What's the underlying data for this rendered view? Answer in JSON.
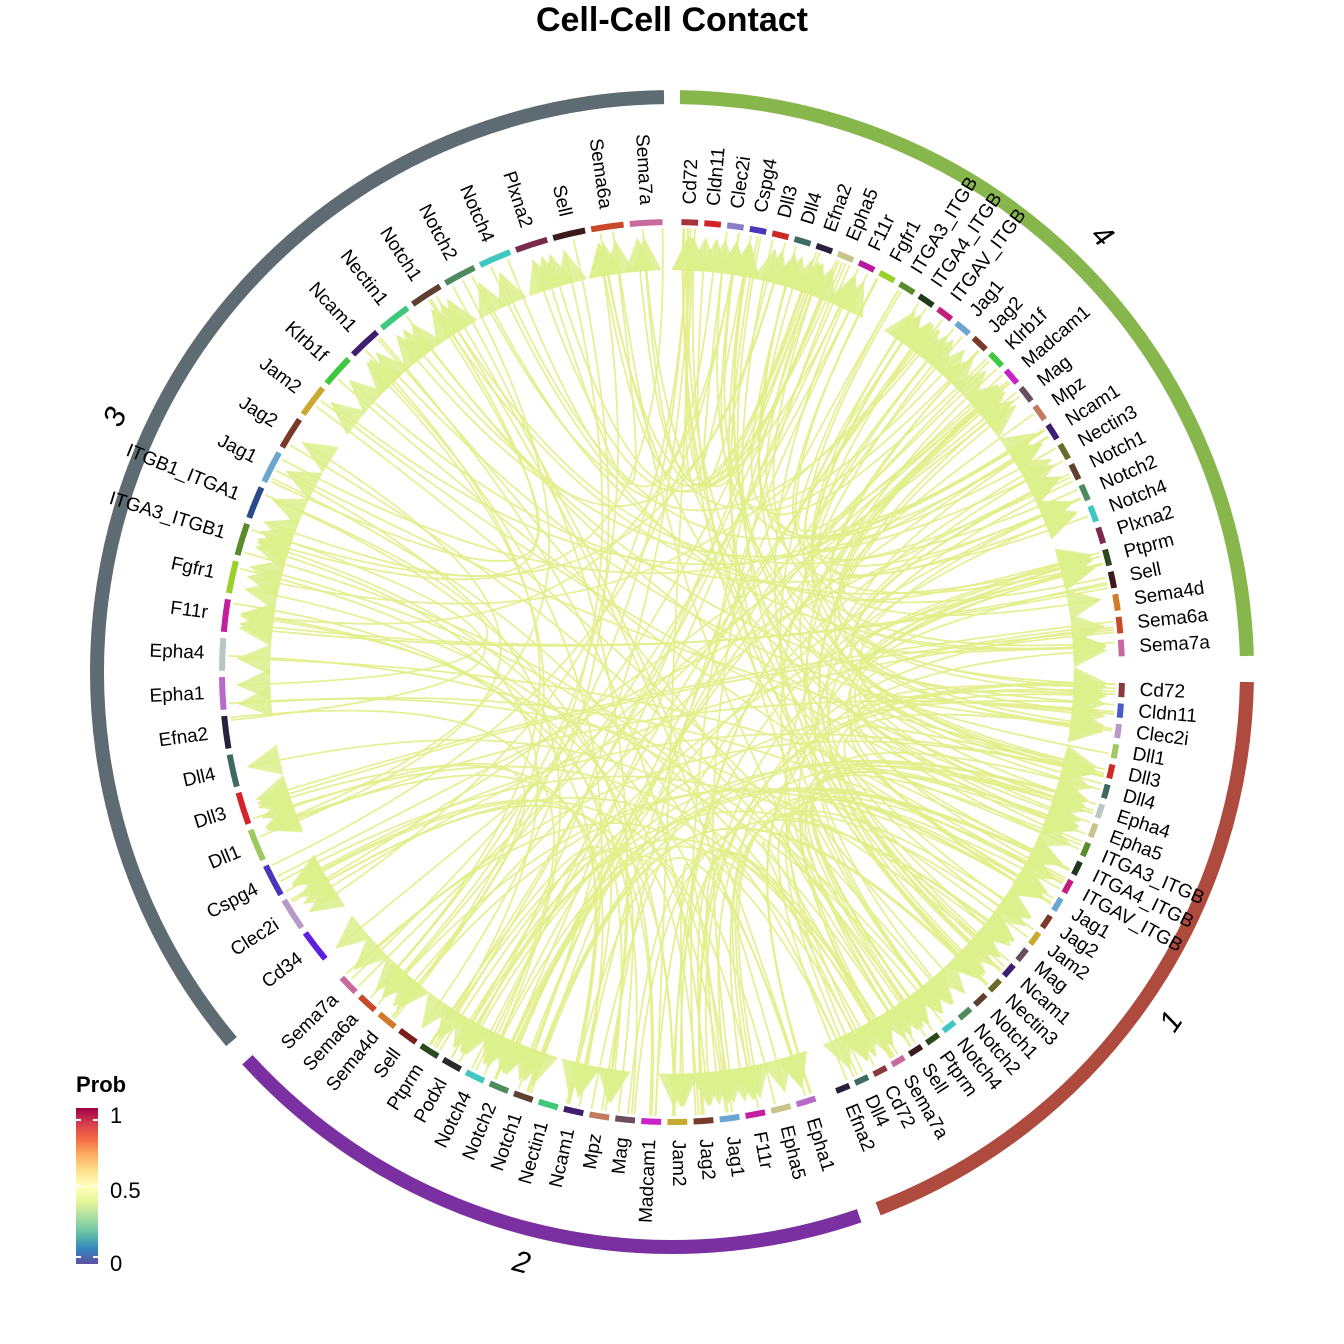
{
  "title": "Cell-Cell Contact",
  "legend": {
    "title": "Prob",
    "ticks": [
      {
        "label": "1",
        "value": 1
      },
      {
        "label": "0.5",
        "value": 0.5
      },
      {
        "label": "0",
        "value": 0
      }
    ],
    "colors": [
      "#9e0142",
      "#d53e4f",
      "#f46d43",
      "#fdae61",
      "#fee08b",
      "#ffffbf",
      "#e6f598",
      "#abdda4",
      "#66c2a5",
      "#3288bd",
      "#5e4fa2"
    ]
  },
  "link_color": "#e2ee8a",
  "arrow_color": "#dcf08c",
  "groups": [
    {
      "label": "4",
      "color": "#86b64c",
      "genes": [
        {
          "name": "Cd72",
          "color": "#a5343c"
        },
        {
          "name": "Cldn11",
          "color": "#d4232a"
        },
        {
          "name": "Clec2i",
          "color": "#8a7cc8"
        },
        {
          "name": "Cspg4",
          "color": "#4b35b8"
        },
        {
          "name": "Dll3",
          "color": "#cc2a24"
        },
        {
          "name": "Dll4",
          "color": "#3f6b63"
        },
        {
          "name": "Efna2",
          "color": "#2a1f3d"
        },
        {
          "name": "Epha5",
          "color": "#c8c48c"
        },
        {
          "name": "F11r",
          "color": "#b8199c"
        },
        {
          "name": "Fgfr1",
          "color": "#9ad02a"
        },
        {
          "name": "ITGA3_ITGB",
          "color": "#5a8a2a"
        },
        {
          "name": "ITGA4_ITGB",
          "color": "#1e3a1a"
        },
        {
          "name": "ITGAV_ITGB",
          "color": "#c21e7e"
        },
        {
          "name": "Jag1",
          "color": "#6aa6d0"
        },
        {
          "name": "Jag2",
          "color": "#7a3a2a"
        },
        {
          "name": "Klrb1f",
          "color": "#3ec840"
        },
        {
          "name": "Madcam1",
          "color": "#c822c8"
        },
        {
          "name": "Mag",
          "color": "#6a4e5e"
        },
        {
          "name": "Mpz",
          "color": "#c47a5e"
        },
        {
          "name": "Ncam1",
          "color": "#3e1e6e"
        },
        {
          "name": "Nectin3",
          "color": "#6a6a2a"
        },
        {
          "name": "Notch1",
          "color": "#5e4030"
        },
        {
          "name": "Notch2",
          "color": "#4e8a5e"
        },
        {
          "name": "Notch4",
          "color": "#3ec8c0"
        },
        {
          "name": "Plxna2",
          "color": "#7a2a4a"
        },
        {
          "name": "Ptprm",
          "color": "#2a4a1e"
        },
        {
          "name": "Sell",
          "color": "#3a1a1a"
        },
        {
          "name": "Sema4d",
          "color": "#d07a2a"
        },
        {
          "name": "Sema6a",
          "color": "#c8482a"
        },
        {
          "name": "Sema7a",
          "color": "#c86a9e"
        }
      ]
    },
    {
      "label": "1",
      "color": "#ae4a3e",
      "genes": [
        {
          "name": "Cd72",
          "color": "#8a3a3e"
        },
        {
          "name": "Cldn11",
          "color": "#4a5ac8"
        },
        {
          "name": "Clec2i",
          "color": "#b89ac8"
        },
        {
          "name": "Dll1",
          "color": "#a0c860"
        },
        {
          "name": "Dll3",
          "color": "#cc2a24"
        },
        {
          "name": "Dll4",
          "color": "#3e6a62"
        },
        {
          "name": "Epha4",
          "color": "#b8c8c0"
        },
        {
          "name": "Epha5",
          "color": "#c8c48c"
        },
        {
          "name": "ITGA3_ITGB",
          "color": "#5a8a2a"
        },
        {
          "name": "ITGA4_ITGB",
          "color": "#1e3a1a"
        },
        {
          "name": "ITGAV_ITGB",
          "color": "#c21e7e"
        },
        {
          "name": "Jag1",
          "color": "#6aa6d0"
        },
        {
          "name": "Jag2",
          "color": "#7a3a2a"
        },
        {
          "name": "Jam2",
          "color": "#c8aa30"
        },
        {
          "name": "Mag",
          "color": "#6a4e5e"
        },
        {
          "name": "Ncam1",
          "color": "#3e1e6e"
        },
        {
          "name": "Nectin3",
          "color": "#6a6a2a"
        },
        {
          "name": "Notch1",
          "color": "#5e4030"
        },
        {
          "name": "Notch2",
          "color": "#4e8a5e"
        },
        {
          "name": "Notch4",
          "color": "#3ec8c0"
        },
        {
          "name": "Ptprm",
          "color": "#2a4a1e"
        },
        {
          "name": "Sell",
          "color": "#3a1a1a"
        },
        {
          "name": "Sema7a",
          "color": "#c86a9e"
        },
        {
          "name": "Cd72",
          "color": "#8a3a3e"
        },
        {
          "name": "Dll4",
          "color": "#3e6a62"
        },
        {
          "name": "Efna2",
          "color": "#2a1f3d"
        }
      ]
    },
    {
      "label": "2",
      "color": "#7b30a2",
      "genes": [
        {
          "name": "Epha1",
          "color": "#b86ac8"
        },
        {
          "name": "Epha5",
          "color": "#c8c48c"
        },
        {
          "name": "F11r",
          "color": "#c21e9e"
        },
        {
          "name": "Jag1",
          "color": "#6aa6d0"
        },
        {
          "name": "Jag2",
          "color": "#7a3a2a"
        },
        {
          "name": "Jam2",
          "color": "#c8aa30"
        },
        {
          "name": "Madcam1",
          "color": "#c822c8"
        },
        {
          "name": "Mag",
          "color": "#6a4e5e"
        },
        {
          "name": "Mpz",
          "color": "#c47a5e"
        },
        {
          "name": "Ncam1",
          "color": "#3e1e6e"
        },
        {
          "name": "Nectin1",
          "color": "#3ec87a"
        },
        {
          "name": "Notch1",
          "color": "#5e4030"
        },
        {
          "name": "Notch2",
          "color": "#4e8a5e"
        },
        {
          "name": "Notch4",
          "color": "#3ec8c0"
        },
        {
          "name": "Podxl",
          "color": "#2a2a2a"
        },
        {
          "name": "Ptprm",
          "color": "#2a4a1e"
        },
        {
          "name": "Sell",
          "color": "#7a1e1e"
        },
        {
          "name": "Sema4d",
          "color": "#d07a2a"
        },
        {
          "name": "Sema6a",
          "color": "#c8482a"
        },
        {
          "name": "Sema7a",
          "color": "#c86a9e"
        }
      ]
    },
    {
      "label": "3",
      "color": "#5f6b73",
      "genes": [
        {
          "name": "Cd34",
          "color": "#5e1ee0"
        },
        {
          "name": "Clec2i",
          "color": "#b89ac8"
        },
        {
          "name": "Cspg4",
          "color": "#4b35b8"
        },
        {
          "name": "Dll1",
          "color": "#a0c860"
        },
        {
          "name": "Dll3",
          "color": "#d4232a"
        },
        {
          "name": "Dll4",
          "color": "#3e6a62"
        },
        {
          "name": "Efna2",
          "color": "#2a1f3d"
        },
        {
          "name": "Epha1",
          "color": "#b86ac8"
        },
        {
          "name": "Epha4",
          "color": "#b8c8c0"
        },
        {
          "name": "F11r",
          "color": "#c21e9e"
        },
        {
          "name": "Fgfr1",
          "color": "#9ad02a"
        },
        {
          "name": "ITGA3_ITGB1",
          "color": "#5a8a2a"
        },
        {
          "name": "ITGB1_ITGA1",
          "color": "#2a4a8a"
        },
        {
          "name": "Jag1",
          "color": "#6aa6d0"
        },
        {
          "name": "Jag2",
          "color": "#7a3a2a"
        },
        {
          "name": "Jam2",
          "color": "#c8aa30"
        },
        {
          "name": "Klrb1f",
          "color": "#3ec840"
        },
        {
          "name": "Ncam1",
          "color": "#3e1e6e"
        },
        {
          "name": "Nectin1",
          "color": "#3ec87a"
        },
        {
          "name": "Notch1",
          "color": "#5e4030"
        },
        {
          "name": "Notch2",
          "color": "#4e8a5e"
        },
        {
          "name": "Notch4",
          "color": "#3ec8c0"
        },
        {
          "name": "Plxna2",
          "color": "#7a2a4a"
        },
        {
          "name": "Sell",
          "color": "#3a1a1a"
        },
        {
          "name": "Sema6a",
          "color": "#c8482a"
        },
        {
          "name": "Sema7a",
          "color": "#c86a9e"
        }
      ]
    }
  ]
}
